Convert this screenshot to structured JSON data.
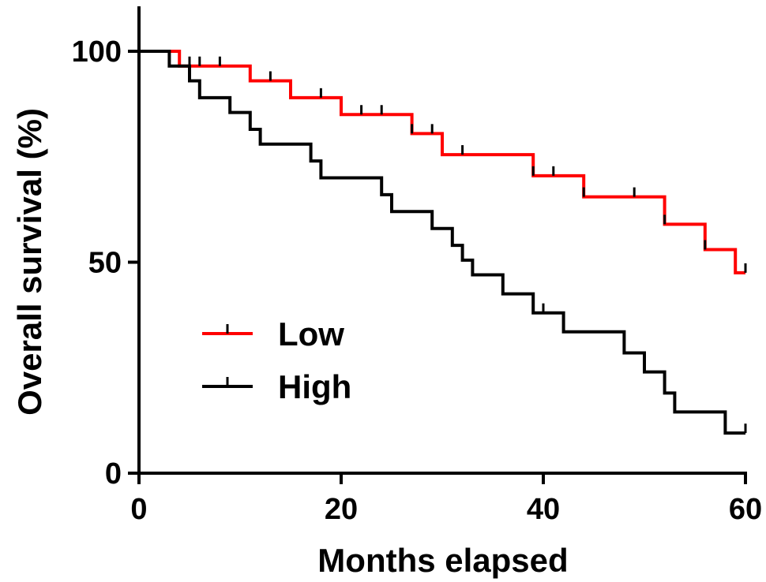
{
  "chart_data": {
    "type": "line",
    "subtype": "kaplan-meier step curve",
    "xlabel": "Months elapsed",
    "ylabel": "Overall survival (%)",
    "xlim": [
      0,
      60
    ],
    "ylim": [
      0,
      100
    ],
    "x_ticks": [
      {
        "value": 0,
        "label": "0"
      },
      {
        "value": 20,
        "label": "20"
      },
      {
        "value": 40,
        "label": "40"
      },
      {
        "value": 60,
        "label": "60"
      }
    ],
    "y_ticks": [
      {
        "value": 0,
        "label": "0"
      },
      {
        "value": 50,
        "label": "50"
      },
      {
        "value": 100,
        "label": "100"
      }
    ],
    "grid": false,
    "legend_position": "lower-left",
    "series": [
      {
        "name": "Low",
        "color": "#ff0000",
        "steps": [
          [
            0,
            100
          ],
          [
            4,
            96.5
          ],
          [
            11,
            93
          ],
          [
            15,
            89
          ],
          [
            20,
            85
          ],
          [
            27,
            80.5
          ],
          [
            30,
            75.5
          ],
          [
            39,
            70.5
          ],
          [
            44,
            65.5
          ],
          [
            52,
            59
          ],
          [
            56,
            53
          ],
          [
            59,
            47.5
          ],
          [
            60,
            47.5
          ]
        ],
        "censored": [
          [
            5,
            96.5
          ],
          [
            6,
            96.5
          ],
          [
            8,
            96.5
          ],
          [
            13,
            93
          ],
          [
            18,
            89
          ],
          [
            22,
            85
          ],
          [
            24,
            85
          ],
          [
            27,
            80.5
          ],
          [
            29,
            80.5
          ],
          [
            32,
            75.5
          ],
          [
            39,
            70.5
          ],
          [
            41,
            70.5
          ],
          [
            44,
            65.5
          ],
          [
            49,
            65.5
          ],
          [
            52,
            59
          ],
          [
            56,
            53
          ],
          [
            60,
            47.5
          ]
        ]
      },
      {
        "name": "High",
        "color": "#000000",
        "steps": [
          [
            0,
            100
          ],
          [
            3,
            96.5
          ],
          [
            5,
            93
          ],
          [
            6,
            89
          ],
          [
            9,
            85.5
          ],
          [
            11,
            81.5
          ],
          [
            12,
            78
          ],
          [
            17,
            74
          ],
          [
            18,
            70
          ],
          [
            24,
            66
          ],
          [
            25,
            62
          ],
          [
            29,
            58
          ],
          [
            31,
            54
          ],
          [
            32,
            50.5
          ],
          [
            33,
            47
          ],
          [
            36,
            42.5
          ],
          [
            39,
            38
          ],
          [
            42,
            33.5
          ],
          [
            48,
            28.5
          ],
          [
            50,
            24
          ],
          [
            52,
            19
          ],
          [
            53,
            14.5
          ],
          [
            58,
            9.5
          ],
          [
            60,
            9.5
          ]
        ],
        "censored": [
          [
            40,
            38
          ],
          [
            60,
            9.5
          ]
        ]
      }
    ]
  }
}
